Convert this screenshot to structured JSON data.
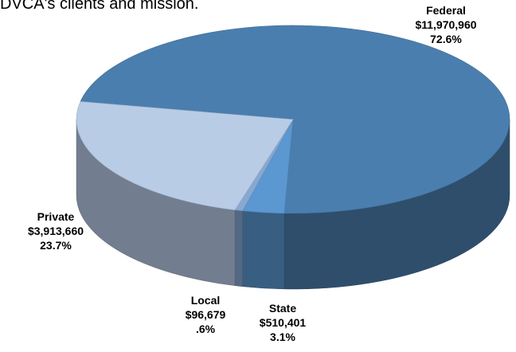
{
  "chart_data": {
    "type": "pie3d",
    "title": "DVCA's clients and mission.",
    "categories": [
      "Federal",
      "State",
      "Local",
      "Private"
    ],
    "values": [
      11970960,
      510401,
      96679,
      3913660
    ],
    "value_labels": [
      "$11,970,960",
      "$510,401",
      "$96,679",
      "$3,913,660"
    ],
    "percentages": [
      72.6,
      3.1,
      0.6,
      23.7
    ],
    "percent_labels": [
      "72.6%",
      "3.1%",
      ".6%",
      "23.7%"
    ],
    "colors": [
      "#4a7eae",
      "#5b97d0",
      "#86a8d2",
      "#b8cce6"
    ]
  }
}
